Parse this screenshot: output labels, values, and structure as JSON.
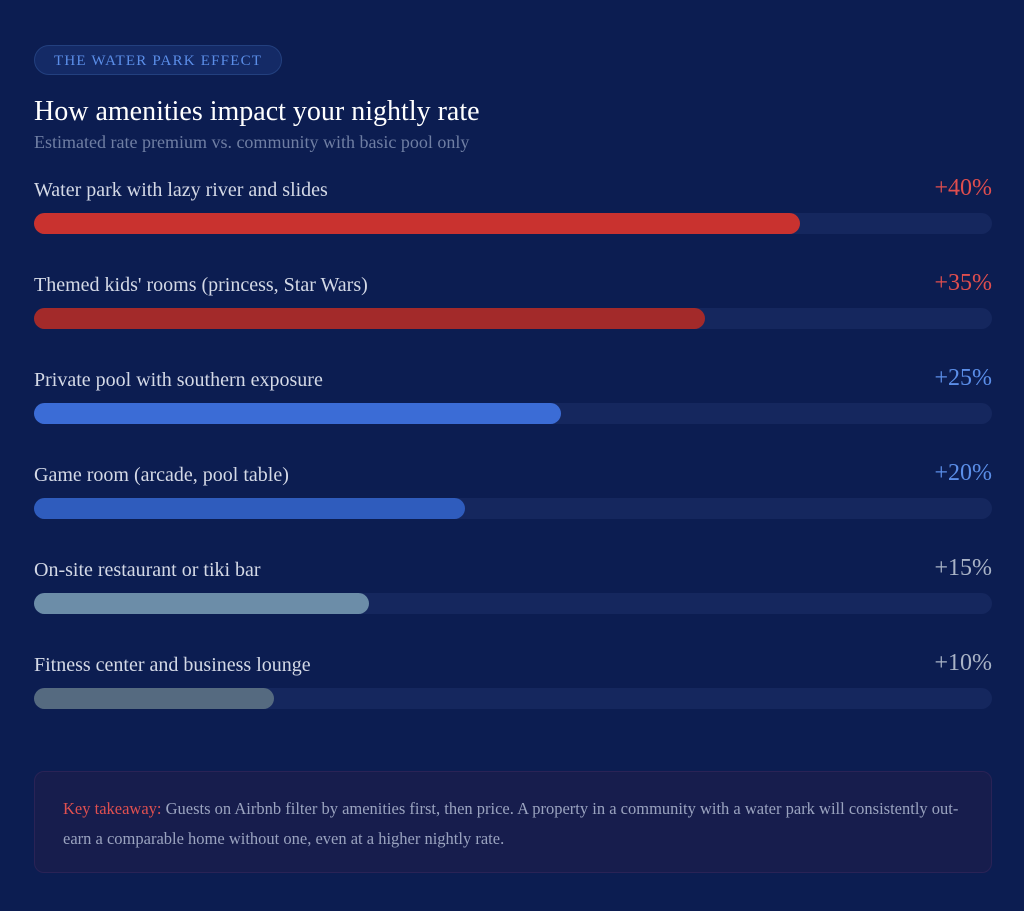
{
  "badge": "THE WATER PARK EFFECT",
  "title": "How amenities impact your nightly rate",
  "subtitle": "Estimated rate premium vs. community with basic pool only",
  "chart_data": {
    "type": "bar",
    "orientation": "horizontal",
    "title": "How amenities impact your nightly rate",
    "subtitle": "Estimated rate premium vs. community with basic pool only",
    "categories": [
      "Water park with lazy river and slides",
      "Themed kids' rooms (princess, Star Wars)",
      "Private pool with southern exposure",
      "Game room (arcade, pool table)",
      "On-site restaurant or tiki bar",
      "Fitness center and business lounge"
    ],
    "values": [
      40,
      35,
      25,
      20,
      15,
      10
    ],
    "value_labels": [
      "+40%",
      "+35%",
      "+25%",
      "+20%",
      "+15%",
      "+10%"
    ],
    "fill_percent": [
      80,
      70,
      55,
      45,
      35,
      25
    ],
    "bar_colors": [
      "#c9322f",
      "#a32a2a",
      "#3b6cd6",
      "#2f5cbd",
      "#6c8da8",
      "#556a80"
    ],
    "label_colors": [
      "#e04e4e",
      "#e04e4e",
      "#5b8ee8",
      "#5b8ee8",
      "#a9b3c6",
      "#a9b3c6"
    ],
    "unit": "%"
  },
  "note": {
    "key": "Key takeaway:",
    "text": " Guests on Airbnb filter by amenities first, then price. A property in a community with a water park will consistently out-earn a comparable home without one, even at a higher nightly rate."
  }
}
